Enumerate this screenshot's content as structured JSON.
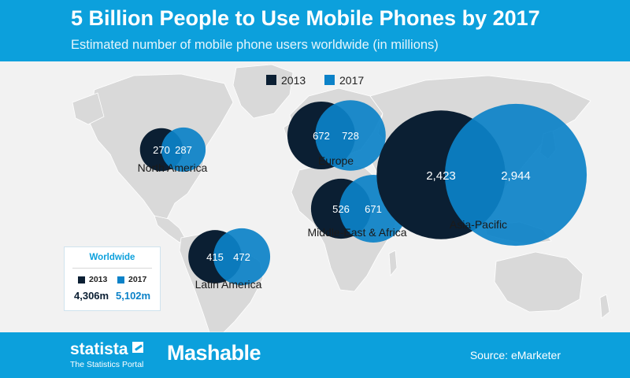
{
  "header": {
    "title": "5 Billion People to Use Mobile Phones by 2017",
    "subtitle": "Estimated number of mobile phone users worldwide (in millions)"
  },
  "legend": [
    {
      "label": "2013",
      "color": "#0b1f33"
    },
    {
      "label": "2017",
      "color": "#0c82c8"
    }
  ],
  "worldwide": {
    "title": "Worldwide",
    "year_2013": "2013",
    "year_2017": "2017",
    "value_2013": "4,306m",
    "value_2017": "5,102m"
  },
  "footer": {
    "brand1": "statista",
    "brand1_sub": "The Statistics Portal",
    "brand2": "Mashable",
    "source": "Source: eMarketer"
  },
  "chart_data": {
    "type": "bubble-map",
    "title": "5 Billion People to Use Mobile Phones by 2017",
    "subtitle": "Estimated number of mobile phone users worldwide (in millions)",
    "series": [
      {
        "name": "2013"
      },
      {
        "name": "2017"
      }
    ],
    "regions": [
      {
        "name": "North America",
        "2013": 270,
        "2017": 287,
        "label_2013": "270",
        "label_2017": "287"
      },
      {
        "name": "Europe",
        "2013": 672,
        "2017": 728,
        "label_2013": "672",
        "label_2017": "728"
      },
      {
        "name": "Middle-East & Africa",
        "2013": 526,
        "2017": 671,
        "label_2013": "526",
        "label_2017": "671"
      },
      {
        "name": "Latin America",
        "2013": 415,
        "2017": 472,
        "label_2013": "415",
        "label_2017": "472"
      },
      {
        "name": "Asia-Pacific",
        "2013": 2423,
        "2017": 2944,
        "label_2013": "2,423",
        "label_2017": "2,944"
      }
    ],
    "worldwide": {
      "2013": 4306,
      "2017": 5102
    },
    "colors": {
      "2013": "#0b1f33",
      "2017": "#0c82c8"
    },
    "source": "Source: eMarketer"
  }
}
